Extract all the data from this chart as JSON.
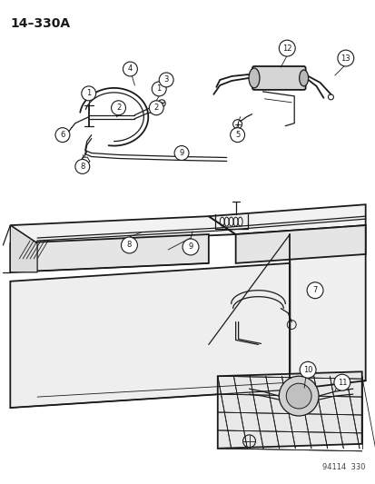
{
  "title": "14–330A",
  "watermark": "94114  330",
  "bg_color": "#ffffff",
  "line_color": "#1a1a1a",
  "fig_width": 4.14,
  "fig_height": 5.33,
  "dpi": 100
}
